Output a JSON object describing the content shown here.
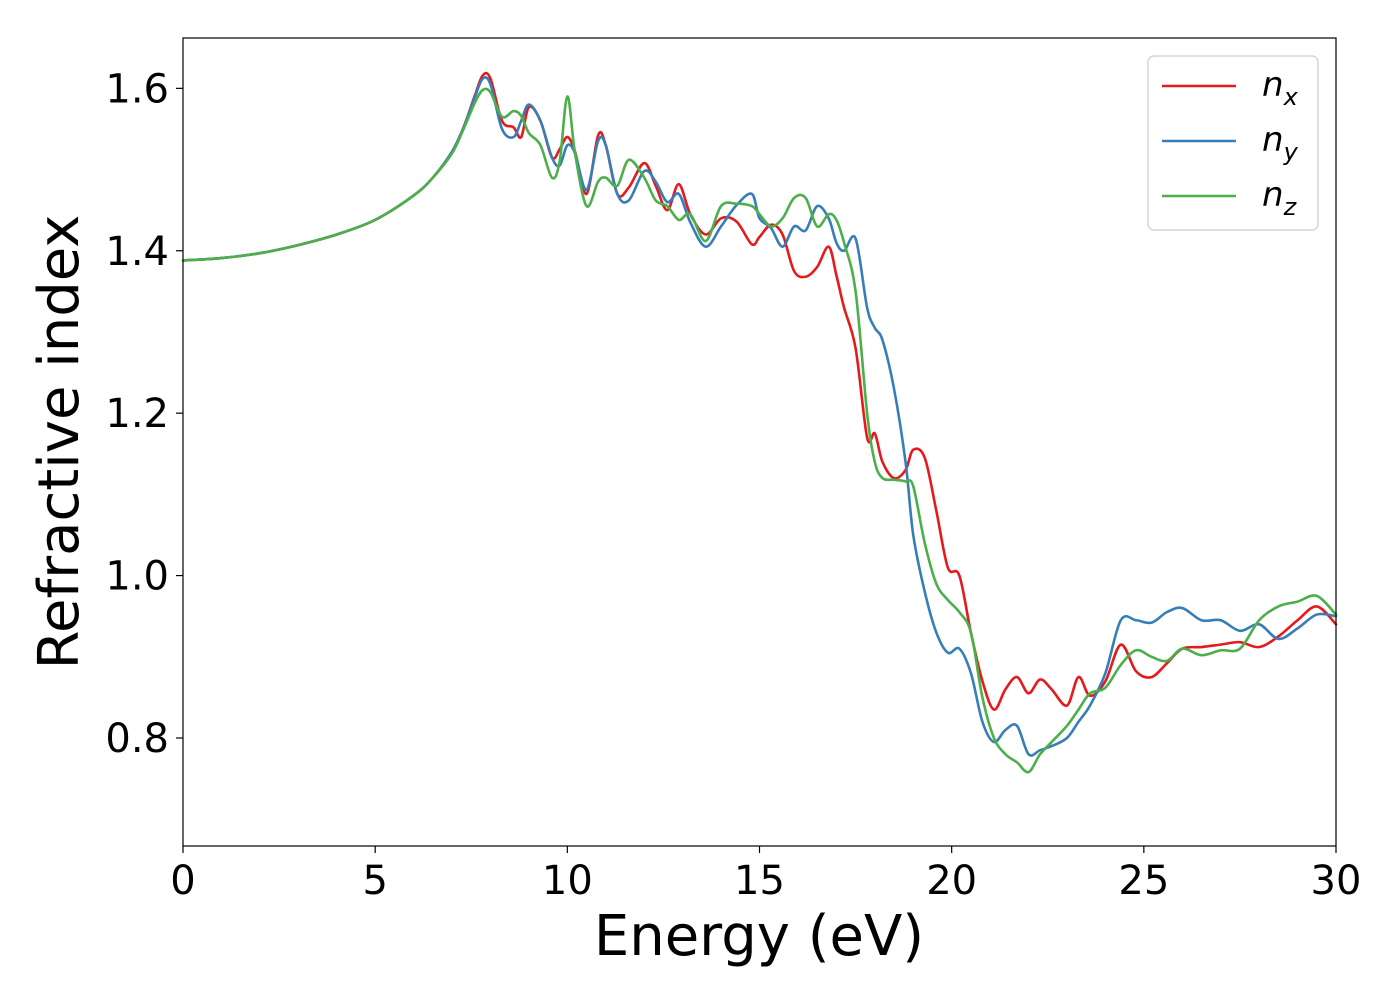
{
  "chart_data": {
    "type": "line",
    "title": "",
    "xlabel": "Energy (eV)",
    "ylabel": "Refractive index",
    "xlim": [
      0,
      30
    ],
    "ylim": [
      0.667,
      1.662
    ],
    "xticks": [
      0,
      5,
      10,
      15,
      20,
      25,
      30
    ],
    "xtick_labels": [
      "0",
      "5",
      "10",
      "15",
      "20",
      "25",
      "30"
    ],
    "yticks": [
      0.8,
      1.0,
      1.2,
      1.4,
      1.6
    ],
    "ytick_labels": [
      "0.8",
      "1.0",
      "1.2",
      "1.4",
      "1.6"
    ],
    "grid": false,
    "legend_position": "top-right",
    "series": [
      {
        "name": "n_x",
        "legend": {
          "base": "n",
          "sub": "x"
        },
        "color": "#e41a1c",
        "x": [
          0,
          1,
          2,
          3,
          4,
          5,
          6,
          6.5,
          7,
          7.3,
          7.6,
          7.8,
          8,
          8.3,
          8.6,
          8.8,
          9,
          9.3,
          9.6,
          9.8,
          10,
          10.2,
          10.5,
          10.8,
          11,
          11.3,
          11.6,
          12,
          12.3,
          12.6,
          12.9,
          13.2,
          13.6,
          14,
          14.4,
          14.8,
          15,
          15.3,
          15.6,
          15.9,
          16.2,
          16.5,
          16.8,
          17,
          17.2,
          17.5,
          17.8,
          18,
          18.2,
          18.5,
          18.8,
          19,
          19.3,
          19.6,
          19.9,
          20.2,
          20.5,
          20.8,
          21.1,
          21.4,
          21.7,
          22,
          22.3,
          22.6,
          23,
          23.3,
          23.6,
          24,
          24.4,
          24.8,
          25.2,
          25.6,
          26,
          26.5,
          27,
          27.5,
          28,
          28.5,
          29,
          29.5,
          30
        ],
        "y": [
          1.388,
          1.391,
          1.397,
          1.407,
          1.42,
          1.438,
          1.468,
          1.49,
          1.522,
          1.552,
          1.592,
          1.616,
          1.612,
          1.56,
          1.552,
          1.54,
          1.577,
          1.56,
          1.515,
          1.525,
          1.54,
          1.522,
          1.47,
          1.542,
          1.53,
          1.47,
          1.478,
          1.508,
          1.48,
          1.45,
          1.482,
          1.445,
          1.42,
          1.44,
          1.436,
          1.408,
          1.417,
          1.432,
          1.42,
          1.375,
          1.368,
          1.38,
          1.405,
          1.37,
          1.33,
          1.28,
          1.17,
          1.175,
          1.14,
          1.12,
          1.13,
          1.155,
          1.145,
          1.08,
          1.01,
          1.0,
          0.93,
          0.87,
          0.835,
          0.86,
          0.875,
          0.855,
          0.872,
          0.86,
          0.84,
          0.875,
          0.852,
          0.87,
          0.915,
          0.882,
          0.875,
          0.892,
          0.91,
          0.912,
          0.915,
          0.918,
          0.912,
          0.925,
          0.945,
          0.962,
          0.94
        ]
      },
      {
        "name": "n_y",
        "legend": {
          "base": "n",
          "sub": "y"
        },
        "color": "#377eb8",
        "x": [
          0,
          1,
          2,
          3,
          4,
          5,
          6,
          6.5,
          7,
          7.3,
          7.6,
          7.8,
          8,
          8.3,
          8.6,
          8.8,
          9,
          9.3,
          9.6,
          9.8,
          10,
          10.2,
          10.5,
          10.8,
          11,
          11.3,
          11.6,
          12,
          12.3,
          12.6,
          12.9,
          13.2,
          13.6,
          14,
          14.4,
          14.8,
          15,
          15.3,
          15.6,
          15.9,
          16.2,
          16.5,
          16.8,
          17,
          17.2,
          17.5,
          17.8,
          18,
          18.2,
          18.5,
          18.8,
          19,
          19.3,
          19.6,
          19.9,
          20.2,
          20.5,
          20.8,
          21.1,
          21.4,
          21.7,
          22,
          22.3,
          22.6,
          23,
          23.3,
          23.6,
          24,
          24.4,
          24.8,
          25.2,
          25.6,
          26,
          26.5,
          27,
          27.5,
          28,
          28.5,
          29,
          29.5,
          30
        ],
        "y": [
          1.388,
          1.391,
          1.397,
          1.407,
          1.42,
          1.438,
          1.468,
          1.49,
          1.522,
          1.552,
          1.59,
          1.612,
          1.605,
          1.55,
          1.54,
          1.56,
          1.58,
          1.56,
          1.515,
          1.505,
          1.53,
          1.52,
          1.475,
          1.535,
          1.53,
          1.47,
          1.462,
          1.498,
          1.485,
          1.46,
          1.47,
          1.435,
          1.405,
          1.43,
          1.456,
          1.47,
          1.44,
          1.428,
          1.405,
          1.43,
          1.425,
          1.455,
          1.44,
          1.41,
          1.4,
          1.415,
          1.33,
          1.305,
          1.29,
          1.23,
          1.14,
          1.05,
          0.98,
          0.93,
          0.905,
          0.91,
          0.88,
          0.82,
          0.795,
          0.81,
          0.815,
          0.78,
          0.785,
          0.79,
          0.8,
          0.82,
          0.84,
          0.88,
          0.945,
          0.945,
          0.942,
          0.955,
          0.96,
          0.945,
          0.945,
          0.932,
          0.94,
          0.922,
          0.935,
          0.952,
          0.95
        ]
      },
      {
        "name": "n_z",
        "legend": {
          "base": "n",
          "sub": "z"
        },
        "color": "#4daf4a",
        "x": [
          0,
          1,
          2,
          3,
          4,
          5,
          6,
          6.5,
          7,
          7.3,
          7.6,
          7.8,
          8,
          8.3,
          8.6,
          8.8,
          9,
          9.3,
          9.6,
          9.8,
          10,
          10.2,
          10.5,
          10.8,
          11,
          11.3,
          11.6,
          12,
          12.3,
          12.6,
          12.9,
          13.2,
          13.6,
          14,
          14.4,
          14.8,
          15,
          15.3,
          15.6,
          15.9,
          16.2,
          16.5,
          16.8,
          17,
          17.2,
          17.5,
          17.8,
          18,
          18.2,
          18.5,
          18.8,
          19,
          19.3,
          19.6,
          19.9,
          20.2,
          20.5,
          20.8,
          21.1,
          21.4,
          21.7,
          22,
          22.3,
          22.6,
          23,
          23.3,
          23.6,
          24,
          24.4,
          24.8,
          25.2,
          25.6,
          26,
          26.5,
          27,
          27.5,
          28,
          28.5,
          29,
          29.5,
          30
        ],
        "y": [
          1.388,
          1.391,
          1.397,
          1.407,
          1.42,
          1.438,
          1.468,
          1.49,
          1.52,
          1.55,
          1.583,
          1.598,
          1.595,
          1.565,
          1.572,
          1.566,
          1.545,
          1.53,
          1.49,
          1.51,
          1.59,
          1.52,
          1.455,
          1.485,
          1.49,
          1.48,
          1.512,
          1.49,
          1.462,
          1.455,
          1.438,
          1.445,
          1.412,
          1.455,
          1.458,
          1.455,
          1.445,
          1.43,
          1.44,
          1.465,
          1.465,
          1.43,
          1.445,
          1.438,
          1.41,
          1.35,
          1.2,
          1.14,
          1.12,
          1.118,
          1.116,
          1.11,
          1.04,
          0.99,
          0.97,
          0.955,
          0.93,
          0.85,
          0.8,
          0.78,
          0.77,
          0.758,
          0.78,
          0.795,
          0.815,
          0.835,
          0.855,
          0.862,
          0.89,
          0.908,
          0.9,
          0.895,
          0.91,
          0.902,
          0.908,
          0.91,
          0.945,
          0.962,
          0.968,
          0.975,
          0.952
        ]
      }
    ]
  }
}
